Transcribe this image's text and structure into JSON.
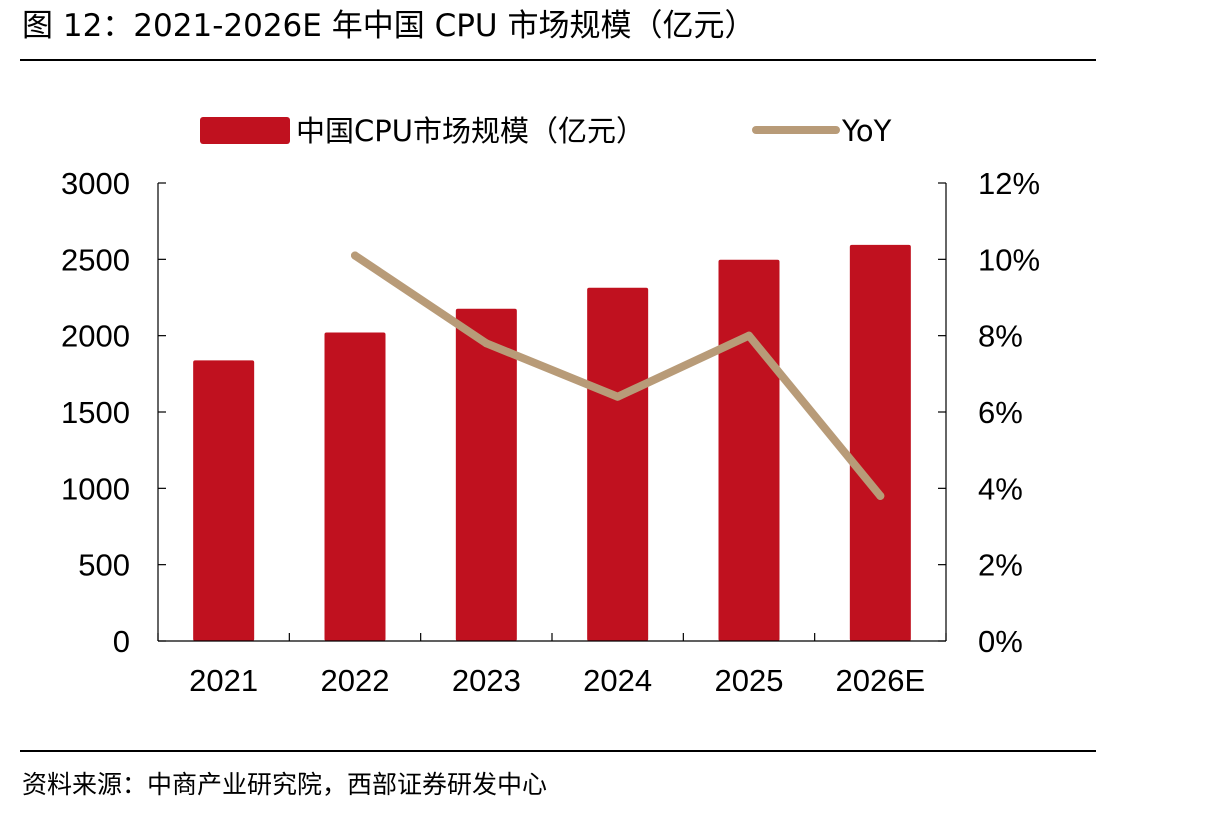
{
  "figure": {
    "title": "图 12：2021-2026E 年中国 CPU 市场规模（亿元）",
    "source": "资料来源：中商产业研究院，西部证券研发中心"
  },
  "chart_data": {
    "type": "bar",
    "categories": [
      "2021",
      "2022",
      "2023",
      "2024",
      "2025",
      "2026E"
    ],
    "series": [
      {
        "name": "中国CPU市场规模（亿元）",
        "type": "bar",
        "axis": "left",
        "values": [
          1838,
          2021,
          2176,
          2314,
          2497,
          2595
        ],
        "color": "#c0111f"
      },
      {
        "name": "YoY",
        "type": "line",
        "axis": "right",
        "values": [
          null,
          10.1,
          7.8,
          6.4,
          8.0,
          3.8
        ],
        "color": "#b89b78"
      }
    ],
    "y_left": {
      "min": 0,
      "max": 3000,
      "ticks": [
        "0",
        "500",
        "1000",
        "1500",
        "2000",
        "2500",
        "3000"
      ]
    },
    "y_right": {
      "min": 0,
      "max": 12,
      "ticks": [
        "0%",
        "2%",
        "4%",
        "6%",
        "8%",
        "10%",
        "12%"
      ]
    },
    "legend": "top-center",
    "grid": false
  }
}
